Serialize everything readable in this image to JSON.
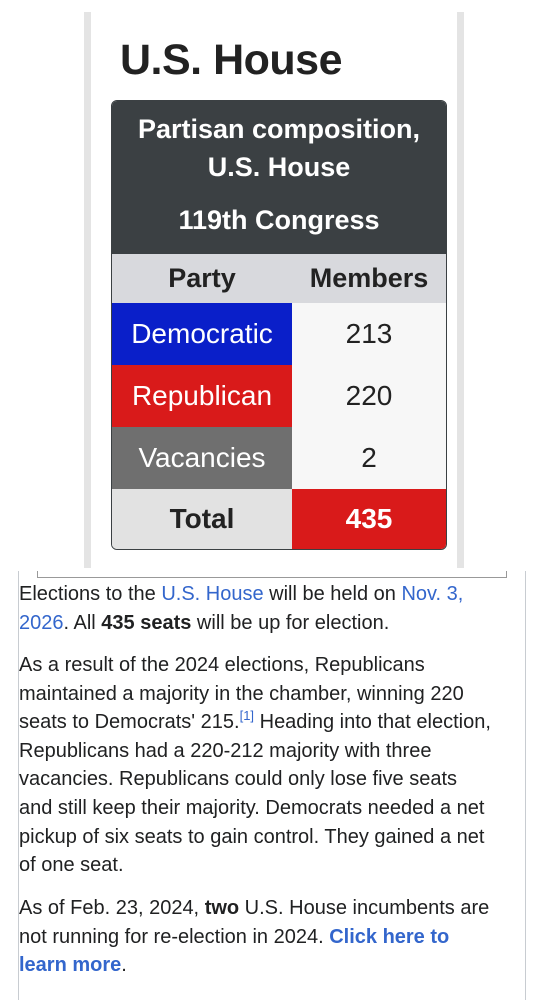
{
  "page": {
    "title": "U.S. House"
  },
  "composition": {
    "title": "Partisan composition, U.S. House",
    "congress": "119th Congress",
    "headers": {
      "party": "Party",
      "members": "Members"
    },
    "rows": [
      {
        "party": "Democratic",
        "members": "213",
        "color": "#0a1fc9"
      },
      {
        "party": "Republican",
        "members": "220",
        "color": "#d91a1a"
      },
      {
        "party": "Vacancies",
        "members": "2",
        "color": "#6f6f6f"
      }
    ],
    "total": {
      "label": "Total",
      "value": "435"
    }
  },
  "paragraphs": {
    "p1": {
      "t1": "Elections to the ",
      "link1": "U.S. House",
      "t2": " will be held on ",
      "link2": "Nov. 3, 2026",
      "t3": ". All ",
      "bold": "435 seats",
      "t4": " will be up for election."
    },
    "p2": {
      "t1": "As a result of the 2024 elections, Republicans maintained a majority in the chamber, winning 220 seats to Democrats' 215.",
      "ref": "[1]",
      "t2": " Heading into that election, Republicans had a 220-212 majority with three vacancies. Republicans could only lose five seats and still keep their majority. Democrats needed a net pickup of six seats to gain control. They gained a net of one seat."
    },
    "p3": {
      "t1": "As of Feb. 23, 2024, ",
      "bold": "two",
      "t2": " U.S. House incumbents are not running for re-election in 2024. ",
      "link": "Click here to learn more",
      "t3": "."
    }
  },
  "colors": {
    "header_bg": "#3b4043",
    "link": "#3366cc",
    "democratic": "#0a1fc9",
    "republican": "#d91a1a",
    "vacancies": "#6f6f6f"
  }
}
